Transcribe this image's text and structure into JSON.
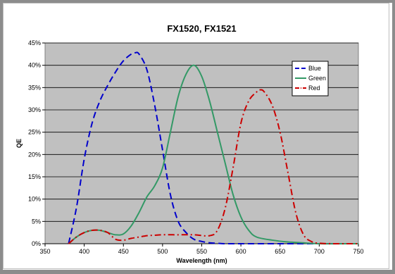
{
  "chart_data": {
    "type": "line",
    "title": "FX1520, FX1521",
    "xlabel": "Wavelength (nm)",
    "ylabel": "QE",
    "xlim": [
      350,
      750
    ],
    "ylim": [
      0,
      45
    ],
    "x_ticks": [
      "350",
      "400",
      "450",
      "500",
      "550",
      "600",
      "650",
      "700",
      "750"
    ],
    "y_ticks": [
      "0%",
      "5%",
      "10%",
      "15%",
      "20%",
      "25%",
      "30%",
      "35%",
      "40%",
      "45%"
    ],
    "grid": true,
    "legend_position": "top-right",
    "colors": {
      "plot_background": "#c0c0c0",
      "blue": "#0000cc",
      "green": "#339966",
      "red": "#cc0000"
    },
    "series": [
      {
        "name": "Blue",
        "style": "dashed",
        "x": [
          380,
          390,
          400,
          410,
          420,
          430,
          440,
          450,
          460,
          465,
          470,
          480,
          490,
          500,
          510,
          520,
          530,
          540,
          550,
          560,
          570,
          580,
          600,
          650,
          700,
          750
        ],
        "y": [
          0,
          8,
          19,
          27,
          32,
          35.5,
          38.5,
          41,
          42.5,
          42.8,
          42.5,
          39,
          31,
          21,
          11,
          5,
          2.5,
          1,
          0.5,
          0.2,
          0.1,
          0,
          0,
          0,
          0,
          0
        ]
      },
      {
        "name": "Green",
        "style": "solid",
        "x": [
          380,
          390,
          400,
          410,
          420,
          430,
          440,
          450,
          460,
          470,
          480,
          490,
          500,
          510,
          520,
          530,
          540,
          550,
          560,
          570,
          580,
          590,
          600,
          610,
          620,
          640,
          660,
          680,
          700,
          750
        ],
        "y": [
          0,
          1.5,
          2.5,
          3,
          3,
          2.5,
          2,
          2.2,
          4,
          7,
          10.5,
          13,
          17,
          25,
          33,
          38,
          40,
          37.5,
          32,
          25,
          18,
          11,
          6,
          3,
          1.5,
          0.8,
          0.4,
          0.2,
          0,
          0
        ]
      },
      {
        "name": "Red",
        "style": "dash-dot",
        "x": [
          380,
          390,
          400,
          410,
          420,
          430,
          440,
          450,
          460,
          470,
          480,
          490,
          500,
          520,
          540,
          560,
          570,
          580,
          590,
          600,
          610,
          620,
          625,
          630,
          640,
          650,
          660,
          670,
          680,
          690,
          700,
          720,
          750
        ],
        "y": [
          0,
          1.5,
          2.5,
          3,
          3,
          2.5,
          1,
          0.8,
          1.2,
          1.5,
          1.8,
          1.9,
          2,
          2,
          2,
          1.8,
          3,
          8,
          17,
          27,
          32,
          34,
          34.5,
          34,
          31,
          25,
          16,
          7,
          2,
          0.5,
          0.1,
          0,
          0
        ]
      }
    ]
  }
}
